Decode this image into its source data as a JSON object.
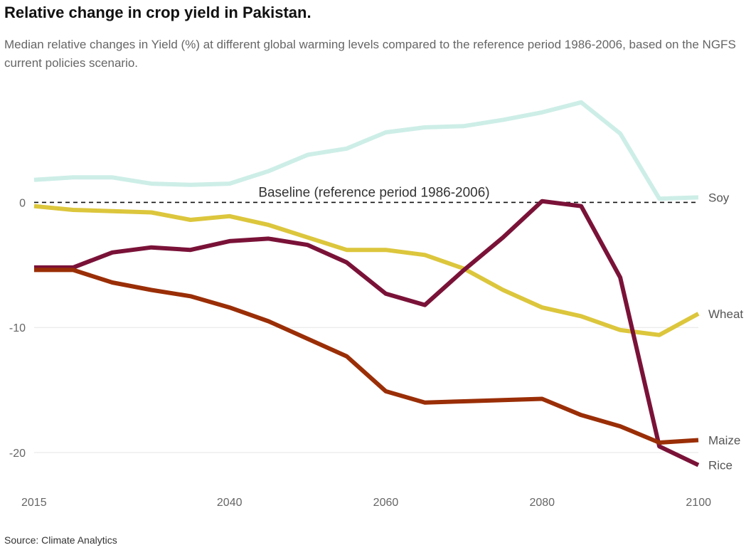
{
  "title": "Relative change in crop yield in Pakistan.",
  "subtitle": "Median relative changes in Yield (%) at different global warming levels compared to the reference period 1986-2006, based on the NGFS current policies scenario.",
  "source": "Source: Climate Analytics",
  "chart_data": {
    "type": "line",
    "xlim": [
      2015,
      2100
    ],
    "ylim": [
      -22.5,
      8.5
    ],
    "x_ticks": [
      {
        "value": 2015,
        "label": "2015"
      },
      {
        "value": 2040,
        "label": "2040"
      },
      {
        "value": 2060,
        "label": "2060"
      },
      {
        "value": 2080,
        "label": "2080"
      },
      {
        "value": 2100,
        "label": "2100"
      }
    ],
    "y_ticks": [
      {
        "value": 0,
        "label": "0"
      },
      {
        "value": -10,
        "label": "-10"
      },
      {
        "value": -20,
        "label": "-20"
      }
    ],
    "grid": "horizontal",
    "baseline": {
      "value": 0,
      "label": "Baseline (reference period 1986-2006)",
      "label_x": 2058.5
    },
    "x": [
      2015,
      2020,
      2025,
      2030,
      2035,
      2040,
      2045,
      2050,
      2055,
      2060,
      2065,
      2070,
      2075,
      2080,
      2085,
      2090,
      2095,
      2100
    ],
    "series": [
      {
        "name": "Soy",
        "color": "#cdeee7",
        "values": [
          1.8,
          2.0,
          2.0,
          1.5,
          1.4,
          1.5,
          2.5,
          3.8,
          4.3,
          5.6,
          6.0,
          6.1,
          6.6,
          7.2,
          8.0,
          5.5,
          0.3,
          0.4
        ]
      },
      {
        "name": "Wheat",
        "color": "#dcc63c",
        "values": [
          -0.3,
          -0.6,
          -0.7,
          -0.8,
          -1.4,
          -1.1,
          -1.8,
          -2.8,
          -3.8,
          -3.8,
          -4.2,
          -5.3,
          -7.0,
          -8.4,
          -9.1,
          -10.2,
          -10.6,
          -8.9
        ]
      },
      {
        "name": "Rice",
        "color": "#7a1238",
        "values": [
          -5.2,
          -5.2,
          -4.0,
          -3.6,
          -3.8,
          -3.1,
          -2.9,
          -3.4,
          -4.8,
          -7.3,
          -8.2,
          -5.4,
          -2.8,
          0.1,
          -0.3,
          -6.0,
          -19.5,
          -21.0
        ]
      },
      {
        "name": "Maize",
        "color": "#9a2e06",
        "values": [
          -5.4,
          -5.4,
          -6.4,
          -7.0,
          -7.5,
          -8.4,
          -9.5,
          -10.9,
          -12.3,
          -15.1,
          -16.0,
          -15.9,
          -15.8,
          -15.7,
          -17.0,
          -17.9,
          -19.2,
          -19.0
        ]
      }
    ]
  }
}
